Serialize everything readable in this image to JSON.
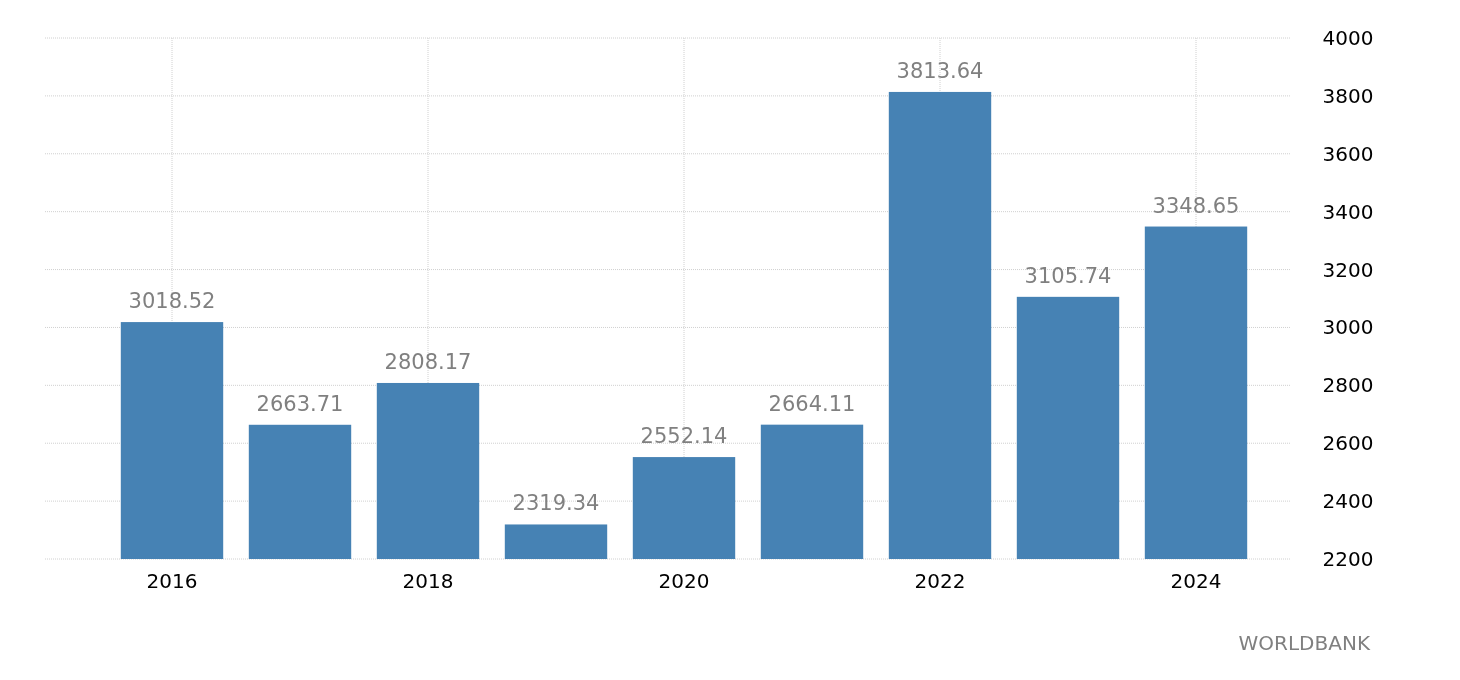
{
  "chart_data": {
    "type": "bar",
    "categories": [
      "2016",
      null,
      "2018",
      null,
      "2020",
      null,
      "2022",
      null,
      "2024"
    ],
    "values": [
      3018.52,
      2663.71,
      2808.17,
      2319.34,
      2552.14,
      2664.11,
      3813.64,
      3105.74,
      3348.65
    ],
    "color": "#4682b4",
    "ylim": [
      2200,
      4000
    ],
    "yticks": [
      2200,
      2400,
      2600,
      2800,
      3000,
      3200,
      3400,
      3600,
      3800,
      4000
    ],
    "grid": true,
    "data_labels": true,
    "annotations": [
      "WORLDBANK"
    ]
  }
}
